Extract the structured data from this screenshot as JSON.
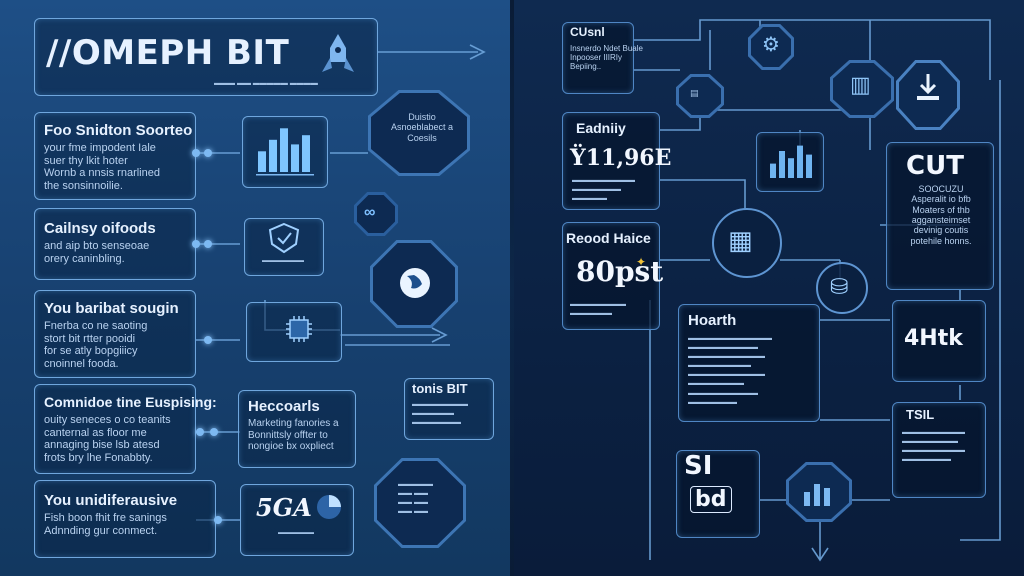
{
  "header": {
    "title": "∕∕OMEPH BIT"
  },
  "left": {
    "rows": [
      {
        "heading": "Foo Snidton Soorteo",
        "body": "your fme impodent Iale\nsuer thy lkit hoter\nWornb a nnsis rnarlined\nthe sonsinnoilie."
      },
      {
        "heading": "Cailnsy oifoods",
        "body": "and aip bto senseoae\norery caninbling."
      },
      {
        "heading": "You baribat sougin",
        "body": "Fnerba co ne saoting\nstort bit rtter pooidi\nfor se atly bopgiiicy\ncnoinnel fooda."
      },
      {
        "heading": "Comnidoe tine Euspising:",
        "body": "ouity seneces o co teanits\ncanternal as floor me\nannaging bise lsb atesd\nfrots bry lhe Fonabbty."
      },
      {
        "heading": "You unidiferausive",
        "body": "Fish boon fhit fre sanings\nAdnnding gur conmect."
      }
    ],
    "mid_box_heading": "Heccoarls",
    "mid_box_body": "Marketing fanories a\nBonnittsly offter to\nnongioe bx oxpliect",
    "code_box_title": "tonis BIT",
    "stat_box_value": "5GA",
    "hex_label": "Duistio\nAsnoeblabect a\nCoesils",
    "bar_values": [
      0.45,
      0.7,
      0.95,
      0.6,
      0.8
    ],
    "icons": [
      "bar-chart-icon",
      "shield-icon",
      "globe-icon",
      "chip-icon",
      "pie-chart-icon",
      "infinity-icon"
    ]
  },
  "right": {
    "top_box": {
      "heading": "CUsnl",
      "body": "Insnerdo Ndet Buale\nInpooser IIIRIy\nBepiing.."
    },
    "eadnity": {
      "heading": "Eadniiy",
      "value": "Ÿ11,96E"
    },
    "reood": {
      "heading": "Reood Haice",
      "value": "80pst"
    },
    "cut": {
      "value": "CUT",
      "body": "SOOCUZU\nAsperalit io bfb\nMoaters of thb\naggansteimset\ndevinig coutis\npotehile honns."
    },
    "hoarth": {
      "heading": "Hoarth"
    },
    "kpi": {
      "value": "4Htk"
    },
    "tsil": {
      "heading": "TSIL"
    },
    "sl": {
      "value": "SI",
      "sub": "bd"
    },
    "chart_values": [
      0.4,
      0.75,
      0.55,
      0.9,
      0.65
    ],
    "icons": [
      "download-icon",
      "gear-icon",
      "server-icon",
      "chip-icon",
      "tablet-icon",
      "database-icon"
    ]
  },
  "colors": {
    "accent": "#7db9f2",
    "border": "#6fa6dd",
    "panel_dark": "#0b2142"
  }
}
